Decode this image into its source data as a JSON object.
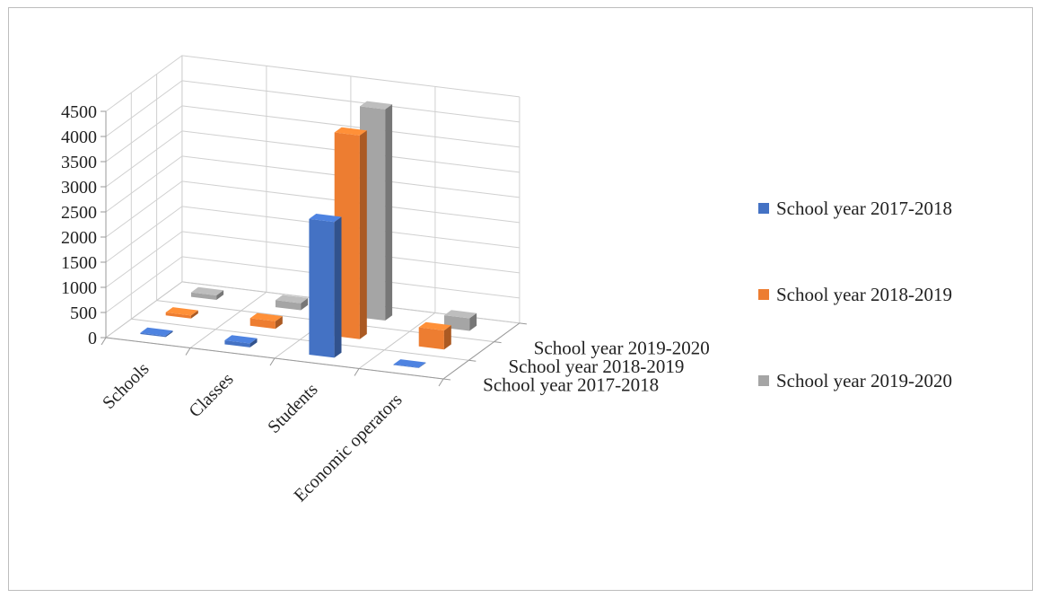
{
  "chart_data": {
    "type": "bar",
    "variant": "3d-clustered-column",
    "title": "",
    "xlabel": "",
    "ylabel": "",
    "categories": [
      "Schools",
      "Classes",
      "Students",
      "Economic operators"
    ],
    "depth_labels": [
      "School year 2017-2018",
      "School year 2018-2019",
      "School year 2019-2020"
    ],
    "y_ticks": [
      0,
      500,
      1000,
      1500,
      2000,
      2500,
      3000,
      3500,
      4000,
      4500
    ],
    "ylim": [
      0,
      4500
    ],
    "grid": true,
    "legend_position": "right",
    "series": [
      {
        "name": "School year 2017-2018",
        "color": "#4472c4",
        "values": [
          25,
          80,
          2700,
          10
        ]
      },
      {
        "name": "School year 2018-2019",
        "color": "#ed7d31",
        "values": [
          60,
          150,
          4050,
          380
        ]
      },
      {
        "name": "School year 2019-2020",
        "color": "#a5a5a5",
        "values": [
          90,
          140,
          4200,
          250
        ]
      }
    ]
  }
}
